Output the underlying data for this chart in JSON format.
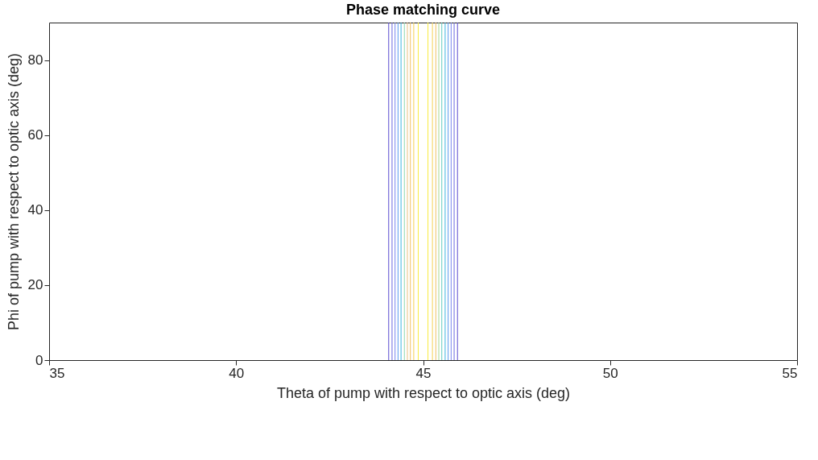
{
  "chart_data": {
    "type": "line",
    "title": "Phase matching curve",
    "xlabel": "Theta of pump with respect to optic axis (deg)",
    "ylabel": "Phi of pump with respect to optic axis (deg)",
    "xlim": [
      35,
      55
    ],
    "xticks": [
      35,
      40,
      45,
      50,
      55
    ],
    "ylim": [
      0,
      90
    ],
    "yticks": [
      0,
      20,
      40,
      60,
      80
    ],
    "grid": false,
    "legend": false,
    "marker": "none",
    "line_style": "solid",
    "series": [
      {
        "color": "#5b4bd0",
        "x": [
          44.08,
          44.08
        ],
        "values": [
          0,
          90
        ]
      },
      {
        "color": "#6a66e0",
        "x": [
          44.17,
          44.17
        ],
        "values": [
          0,
          90
        ]
      },
      {
        "color": "#7a86ee",
        "x": [
          44.25,
          44.25
        ],
        "values": [
          0,
          90
        ]
      },
      {
        "color": "#5a9cf0",
        "x": [
          44.33,
          44.33
        ],
        "values": [
          0,
          90
        ]
      },
      {
        "color": "#3cb4e0",
        "x": [
          44.41,
          44.41
        ],
        "values": [
          0,
          90
        ]
      },
      {
        "color": "#8ed8b0",
        "x": [
          44.5,
          44.5
        ],
        "values": [
          0,
          90
        ]
      },
      {
        "color": "#e8c080",
        "x": [
          44.58,
          44.58
        ],
        "values": [
          0,
          90
        ]
      },
      {
        "color": "#f0c060",
        "x": [
          44.66,
          44.66
        ],
        "values": [
          0,
          90
        ]
      },
      {
        "color": "#f5d050",
        "x": [
          44.75,
          44.75
        ],
        "values": [
          0,
          90
        ]
      },
      {
        "color": "#f8ec40",
        "x": [
          44.87,
          44.87
        ],
        "values": [
          0,
          90
        ]
      },
      {
        "color": "#f8ec40",
        "x": [
          45.13,
          45.13
        ],
        "values": [
          0,
          90
        ]
      },
      {
        "color": "#f5d050",
        "x": [
          45.25,
          45.25
        ],
        "values": [
          0,
          90
        ]
      },
      {
        "color": "#f0c060",
        "x": [
          45.34,
          45.34
        ],
        "values": [
          0,
          90
        ]
      },
      {
        "color": "#a8d890",
        "x": [
          45.42,
          45.42
        ],
        "values": [
          0,
          90
        ]
      },
      {
        "color": "#60ccc0",
        "x": [
          45.5,
          45.5
        ],
        "values": [
          0,
          90
        ]
      },
      {
        "color": "#3cb4e0",
        "x": [
          45.59,
          45.59
        ],
        "values": [
          0,
          90
        ]
      },
      {
        "color": "#5a9cf0",
        "x": [
          45.67,
          45.67
        ],
        "values": [
          0,
          90
        ]
      },
      {
        "color": "#7a86ee",
        "x": [
          45.75,
          45.75
        ],
        "values": [
          0,
          90
        ]
      },
      {
        "color": "#6a66e0",
        "x": [
          45.83,
          45.83
        ],
        "values": [
          0,
          90
        ]
      },
      {
        "color": "#5b4bd0",
        "x": [
          45.92,
          45.92
        ],
        "values": [
          0,
          90
        ]
      }
    ]
  }
}
